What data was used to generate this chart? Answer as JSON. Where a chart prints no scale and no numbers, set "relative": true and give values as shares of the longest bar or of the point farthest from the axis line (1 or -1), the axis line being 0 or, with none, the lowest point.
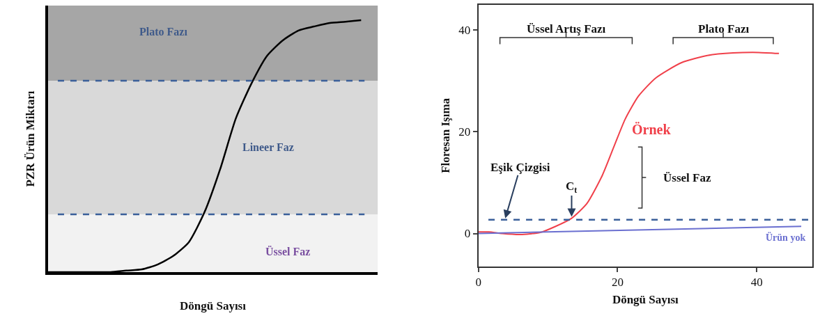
{
  "chart_data": [
    {
      "type": "line",
      "relative": true,
      "xlabel": "Döngü Sayısı",
      "ylabel": "PZR Ürün Miktarı",
      "categories": [
        null,
        null,
        null,
        null,
        null,
        null,
        null,
        null,
        null,
        null,
        null,
        null,
        null,
        null,
        null,
        null,
        null,
        null,
        null,
        null,
        null
      ],
      "series": [
        {
          "color": "#000000",
          "values": [
            0,
            0,
            0,
            0,
            0,
            0.006,
            0.011,
            0.03,
            0.064,
            0.119,
            0.238,
            0.409,
            0.61,
            0.749,
            0.859,
            0.92,
            0.959,
            0.975,
            0.989,
            0.994,
            1
          ]
        }
      ],
      "ref_lines": [
        {
          "axis": "y",
          "value": 0.229,
          "color": "#3a5f9a",
          "line_style": "dashed"
        },
        {
          "axis": "y",
          "value": 0.76,
          "color": "#3a5f9a",
          "line_style": "dashed"
        }
      ],
      "bands": [
        {
          "axis": "y",
          "from": 0,
          "to": 0.229,
          "label": "Üssel Faz",
          "color": "#f2f2f2"
        },
        {
          "axis": "y",
          "from": 0.229,
          "to": 0.76,
          "label": "Lineer Faz",
          "color": "#d9d9d9"
        },
        {
          "axis": "y",
          "from": 0.76,
          "to": 1.058,
          "label": "Plato Fazı",
          "color": "#a6a6a6"
        }
      ],
      "tick_labels": false,
      "grid": false,
      "legend": false,
      "line_style": "solid",
      "marker": "none"
    },
    {
      "type": "line",
      "xlabel": "Döngü Sayısı",
      "ylabel": "Floresan Işıma",
      "xlim": [
        0,
        48
      ],
      "xticks": [
        0,
        20,
        40
      ],
      "ylim": [
        -6.5,
        45
      ],
      "yticks": [
        0,
        20,
        40
      ],
      "series": [
        {
          "name": "Örnek",
          "color": "#f0404a",
          "x": [
            0,
            1.5,
            3.4,
            6,
            8.9,
            11.1,
            13.4,
            15.6,
            17.8,
            19.6,
            21.1,
            23,
            25.5,
            29.2,
            32.9,
            36.6,
            40.3,
            43.2
          ],
          "values": [
            0.3,
            0.3,
            0,
            -0.2,
            0.2,
            1.4,
            3.0,
            5.9,
            11.4,
            17.5,
            22.5,
            27,
            30.6,
            33.6,
            35,
            35.5,
            35.6,
            35.4
          ]
        },
        {
          "name": "Ürün yok",
          "color": "#6a6fd0",
          "x": [
            0,
            46.4
          ],
          "values": [
            0,
            1.4
          ]
        }
      ],
      "ref_lines": [
        {
          "axis": "y",
          "value": 2.7,
          "color": "#3a5f9a",
          "line_style": "dashed"
        }
      ],
      "annotations": [
        "Üssel Artış Fazı",
        "Plato Fazı",
        {
          "text": "Eşik Çizgisi",
          "x": 3.8,
          "y": 2.7
        },
        {
          "text": "C$_{t}$",
          "x": 13.4,
          "y": 3.0
        },
        "Üssel Faz"
      ],
      "grid": false,
      "legend": false,
      "line_style": "solid",
      "marker": "none"
    }
  ]
}
